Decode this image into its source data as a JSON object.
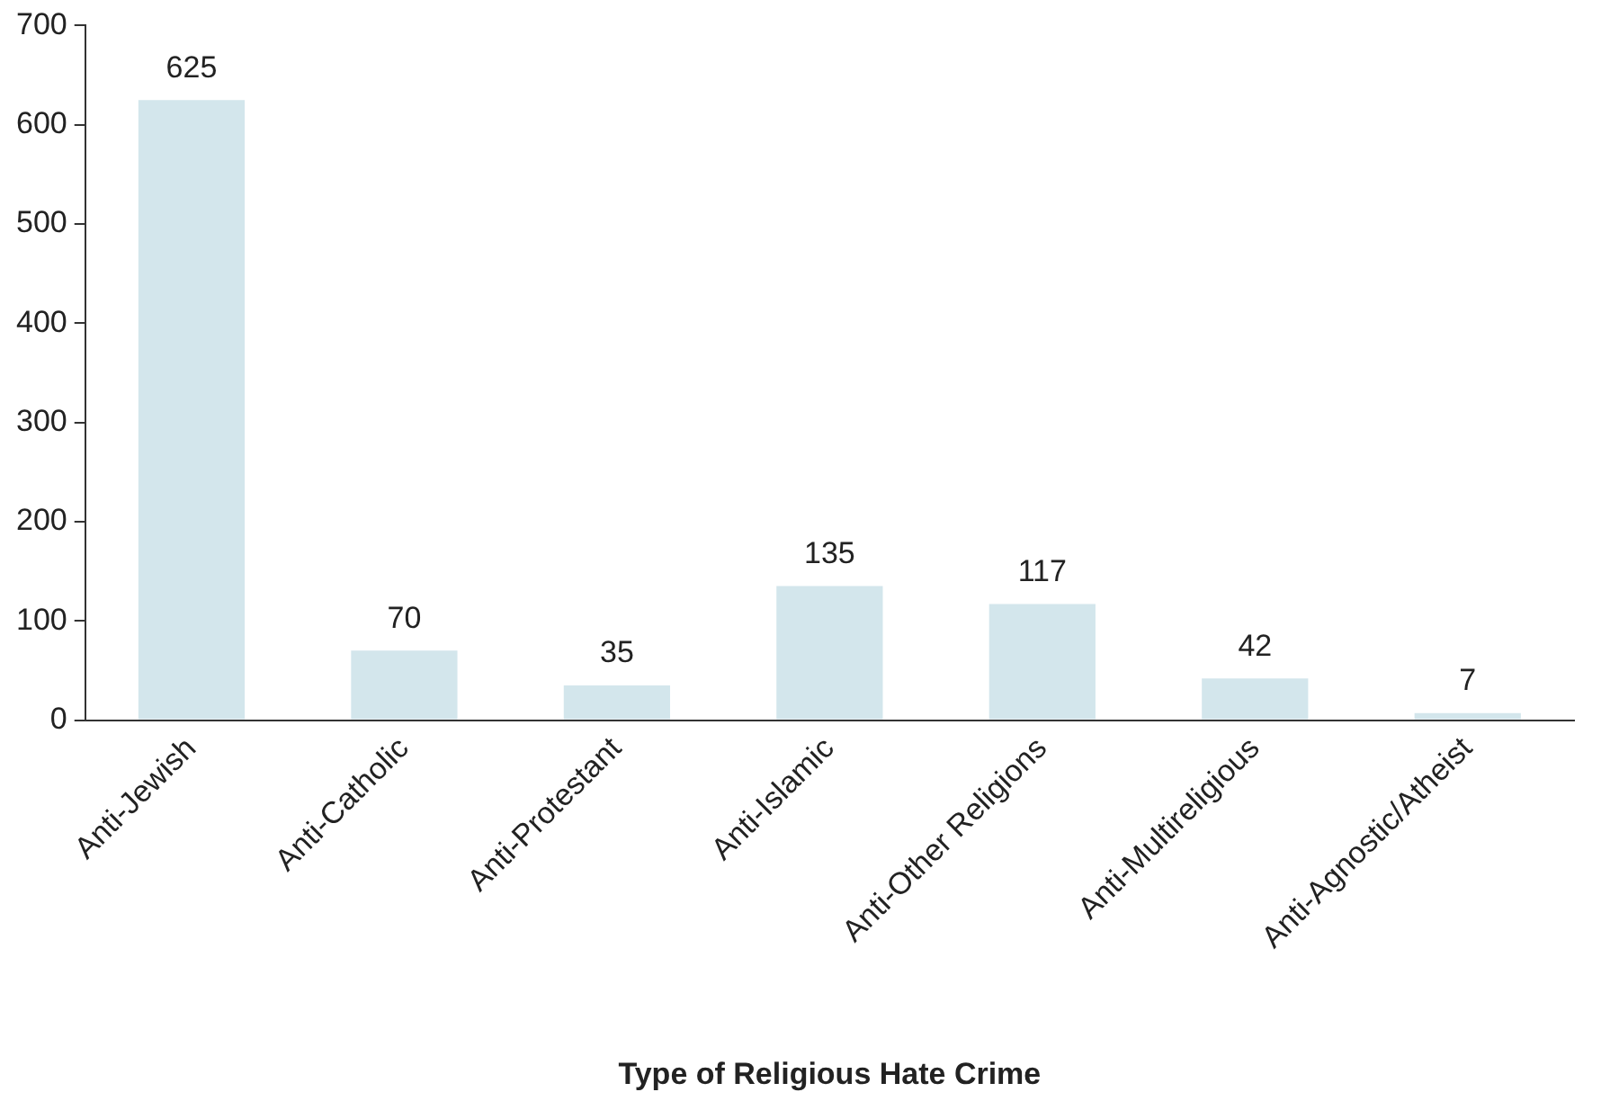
{
  "chart_data": {
    "type": "bar",
    "xlabel": "Type of Religious Hate Crime",
    "categories": [
      "Anti-Jewish",
      "Anti-Catholic",
      "Anti-Protestant",
      "Anti-Islamic",
      "Anti-Other Religions",
      "Anti-Multireligious",
      "Anti-Agnostic/Atheist"
    ],
    "values": [
      625,
      70,
      35,
      135,
      117,
      42,
      7
    ],
    "color": "#d3e6ec",
    "ylim": [
      0,
      700
    ],
    "yticks": [
      0,
      100,
      200,
      300,
      400,
      500,
      600,
      700
    ],
    "grid": false,
    "legend": false,
    "data_labels": true
  }
}
